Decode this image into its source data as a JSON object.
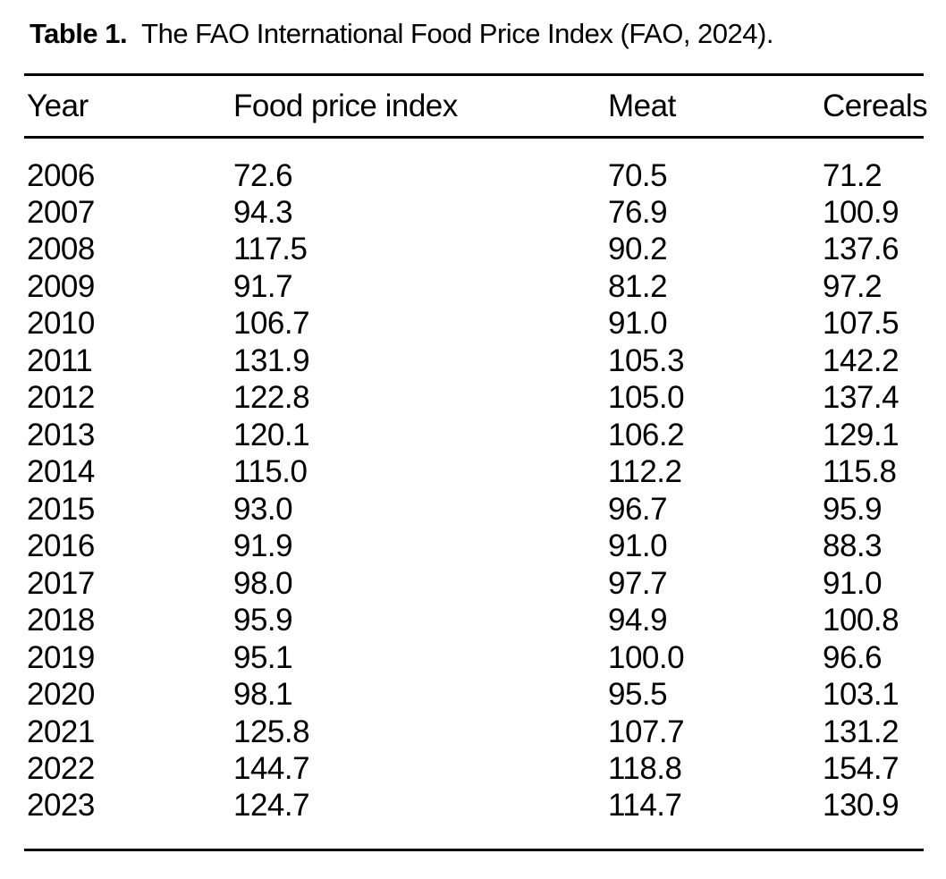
{
  "table": {
    "label": "Table 1.",
    "caption": "The FAO International Food Price Index (FAO, 2024).",
    "columns": [
      "Year",
      "Food price index",
      "Meat",
      "Cereals"
    ],
    "rows": [
      [
        "2006",
        "72.6",
        "70.5",
        "71.2"
      ],
      [
        "2007",
        "94.3",
        "76.9",
        "100.9"
      ],
      [
        "2008",
        "117.5",
        "90.2",
        "137.6"
      ],
      [
        "2009",
        "91.7",
        "81.2",
        "97.2"
      ],
      [
        "2010",
        "106.7",
        "91.0",
        "107.5"
      ],
      [
        "2011",
        "131.9",
        "105.3",
        "142.2"
      ],
      [
        "2012",
        "122.8",
        "105.0",
        "137.4"
      ],
      [
        "2013",
        "120.1",
        "106.2",
        "129.1"
      ],
      [
        "2014",
        "115.0",
        "112.2",
        "115.8"
      ],
      [
        "2015",
        "93.0",
        "96.7",
        "95.9"
      ],
      [
        "2016",
        "91.9",
        "91.0",
        "88.3"
      ],
      [
        "2017",
        "98.0",
        "97.7",
        "91.0"
      ],
      [
        "2018",
        "95.9",
        "94.9",
        "100.8"
      ],
      [
        "2019",
        "95.1",
        "100.0",
        "96.6"
      ],
      [
        "2020",
        "98.1",
        "95.5",
        "103.1"
      ],
      [
        "2021",
        "125.8",
        "107.7",
        "131.2"
      ],
      [
        "2022",
        "144.7",
        "118.8",
        "154.7"
      ],
      [
        "2023",
        "124.7",
        "114.7",
        "130.9"
      ]
    ]
  },
  "colors": {
    "ink": "#000000",
    "background": "#ffffff"
  }
}
